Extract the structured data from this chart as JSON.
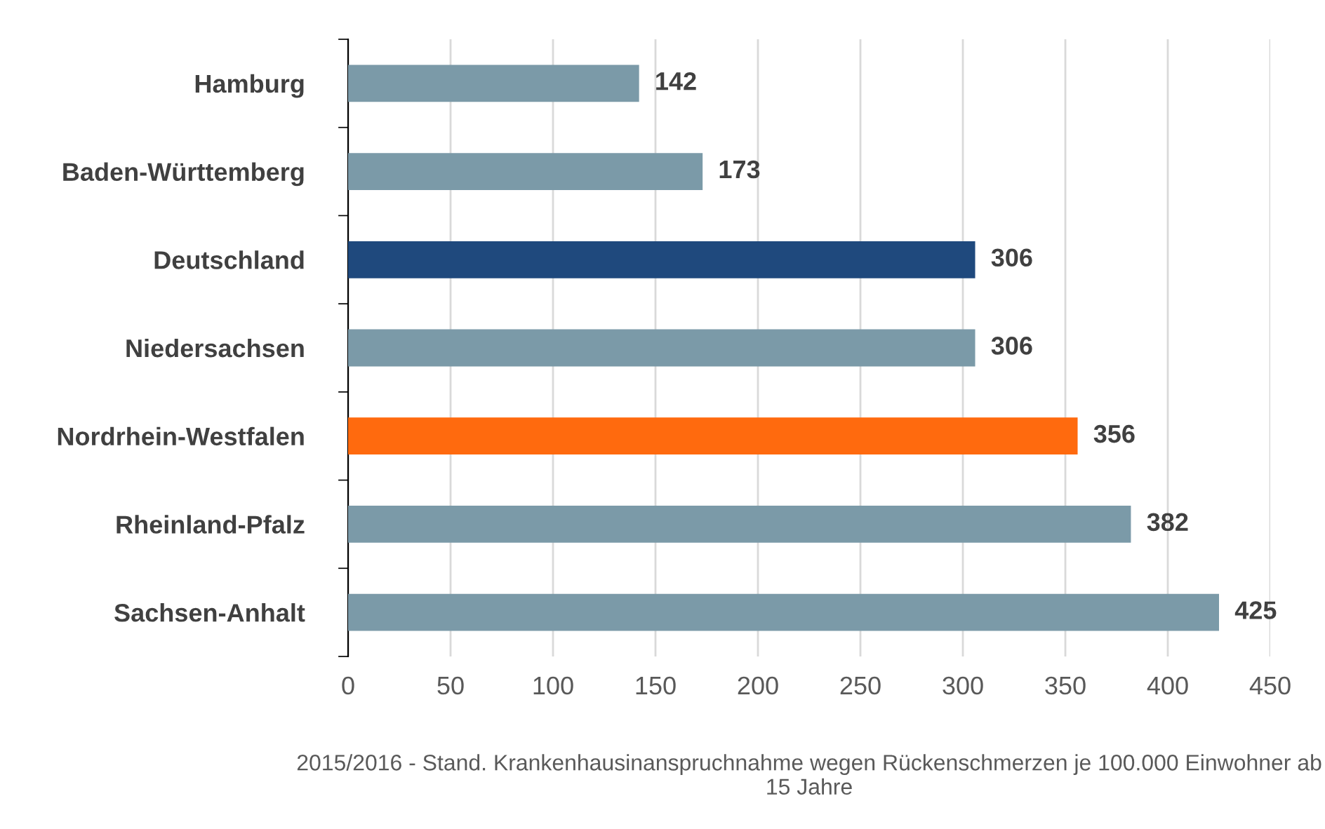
{
  "chart_data": {
    "type": "bar",
    "orientation": "horizontal",
    "categories": [
      "Hamburg",
      "Baden-Württemberg",
      "Deutschland",
      "Niedersachsen",
      "Nordrhein-Westfalen",
      "Rheinland-Pfalz",
      "Sachsen-Anhalt"
    ],
    "values": [
      142,
      173,
      306,
      306,
      356,
      382,
      425
    ],
    "colors": [
      "#7b9aa8",
      "#7b9aa8",
      "#1f497d",
      "#7b9aa8",
      "#ff6a0e",
      "#7b9aa8",
      "#7b9aa8"
    ],
    "xlim": [
      0,
      450
    ],
    "xticks": [
      0,
      50,
      100,
      150,
      200,
      250,
      300,
      350,
      400,
      450
    ],
    "grid": "x",
    "data_labels": true,
    "xlabel": "2015/2016 - Stand. Krankenhausinanspruchnahme wegen Rückenschmerzen je 100.000 Einwohner ab 15 Jahre"
  }
}
